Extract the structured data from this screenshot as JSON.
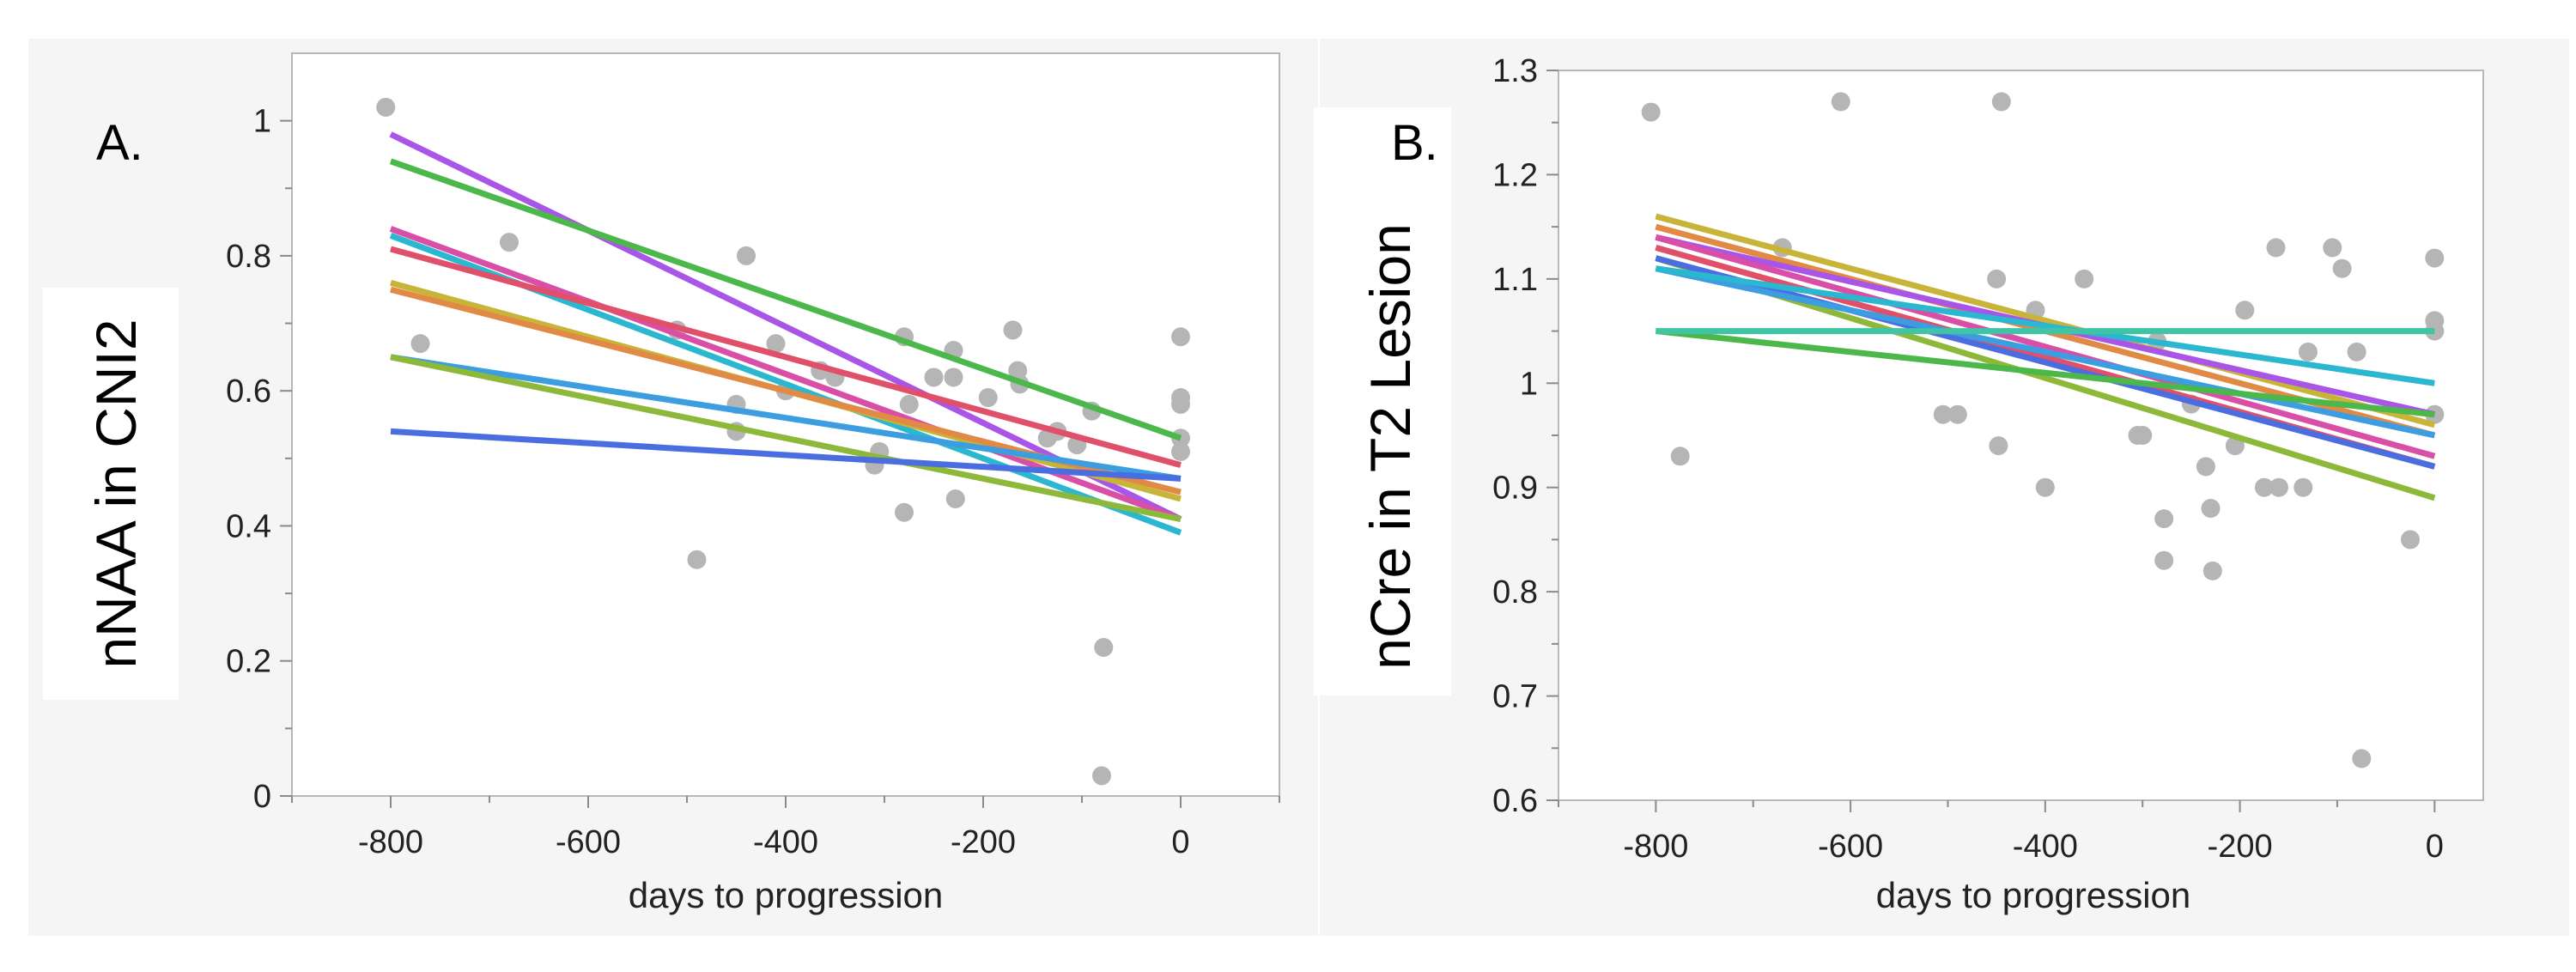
{
  "chart_data": [
    {
      "panel_label": "A.",
      "type": "scatter",
      "xlabel": "days to progression",
      "ylabel": "nNAA in CNI2",
      "xlim": [
        -900,
        100
      ],
      "ylim": [
        0,
        1.1
      ],
      "xticks": [
        -800,
        -600,
        -400,
        -200,
        0
      ],
      "yticks": [
        0,
        0.2,
        0.4,
        0.6,
        0.8,
        1
      ],
      "xtick_labels": [
        "-800",
        "-600",
        "-400",
        "-200",
        "0"
      ],
      "ytick_labels": [
        "0",
        "0.2",
        "0.4",
        "0.6",
        "0.8",
        "1"
      ],
      "grid": false,
      "points": [
        [
          -805,
          1.02
        ],
        [
          -770,
          0.67
        ],
        [
          -680,
          0.82
        ],
        [
          -510,
          0.69
        ],
        [
          -490,
          0.35
        ],
        [
          -450,
          0.58
        ],
        [
          -450,
          0.54
        ],
        [
          -440,
          0.8
        ],
        [
          -410,
          0.67
        ],
        [
          -400,
          0.6
        ],
        [
          -365,
          0.63
        ],
        [
          -350,
          0.62
        ],
        [
          -310,
          0.49
        ],
        [
          -305,
          0.51
        ],
        [
          -280,
          0.68
        ],
        [
          -280,
          0.42
        ],
        [
          -275,
          0.58
        ],
        [
          -250,
          0.62
        ],
        [
          -230,
          0.66
        ],
        [
          -230,
          0.62
        ],
        [
          -228,
          0.44
        ],
        [
          -195,
          0.59
        ],
        [
          -170,
          0.69
        ],
        [
          -165,
          0.63
        ],
        [
          -163,
          0.61
        ],
        [
          -135,
          0.53
        ],
        [
          -125,
          0.54
        ],
        [
          -105,
          0.52
        ],
        [
          -90,
          0.57
        ],
        [
          -78,
          0.22
        ],
        [
          -80,
          0.03
        ],
        [
          0,
          0.68
        ],
        [
          0,
          0.59
        ],
        [
          0,
          0.58
        ],
        [
          0,
          0.53
        ],
        [
          0,
          0.51
        ]
      ],
      "fit_lines": [
        {
          "color": "#a855e8",
          "x": [
            -800,
            0
          ],
          "y": [
            0.98,
            0.41
          ]
        },
        {
          "color": "#4cb84c",
          "x": [
            -800,
            0
          ],
          "y": [
            0.94,
            0.53
          ]
        },
        {
          "color": "#d94fa8",
          "x": [
            -800,
            0
          ],
          "y": [
            0.84,
            0.41
          ]
        },
        {
          "color": "#2ab7cf",
          "x": [
            -800,
            0
          ],
          "y": [
            0.83,
            0.39
          ]
        },
        {
          "color": "#e0506a",
          "x": [
            -800,
            0
          ],
          "y": [
            0.81,
            0.49
          ]
        },
        {
          "color": "#c9b43a",
          "x": [
            -800,
            0
          ],
          "y": [
            0.76,
            0.44
          ]
        },
        {
          "color": "#e08a45",
          "x": [
            -800,
            0
          ],
          "y": [
            0.75,
            0.45
          ]
        },
        {
          "color": "#3c9de0",
          "x": [
            -800,
            0
          ],
          "y": [
            0.65,
            0.47
          ]
        },
        {
          "color": "#8db83a",
          "x": [
            -800,
            0
          ],
          "y": [
            0.65,
            0.41
          ]
        },
        {
          "color": "#4a6ee0",
          "x": [
            -800,
            0
          ],
          "y": [
            0.54,
            0.47
          ]
        }
      ]
    },
    {
      "panel_label": "B.",
      "type": "scatter",
      "xlabel": "days to progression",
      "ylabel": "nCre in T2 Lesion",
      "xlim": [
        -900,
        50
      ],
      "ylim": [
        0.6,
        1.3
      ],
      "xticks": [
        -800,
        -600,
        -400,
        -200,
        0
      ],
      "yticks": [
        0.6,
        0.7,
        0.8,
        0.9,
        1,
        1.1,
        1.2,
        1.3
      ],
      "xtick_labels": [
        "-800",
        "-600",
        "-400",
        "-200",
        "0"
      ],
      "ytick_labels": [
        "0.6",
        "0.7",
        "0.8",
        "0.9",
        "1",
        "1.1",
        "1.2",
        "1.3"
      ],
      "grid": false,
      "points": [
        [
          -805,
          1.26
        ],
        [
          -775,
          0.93
        ],
        [
          -670,
          1.13
        ],
        [
          -610,
          1.27
        ],
        [
          -505,
          0.97
        ],
        [
          -490,
          0.97
        ],
        [
          -450,
          1.1
        ],
        [
          -448,
          0.94
        ],
        [
          -445,
          1.27
        ],
        [
          -410,
          1.07
        ],
        [
          -400,
          0.9
        ],
        [
          -360,
          1.1
        ],
        [
          -305,
          0.95
        ],
        [
          -300,
          0.95
        ],
        [
          -285,
          1.04
        ],
        [
          -278,
          0.87
        ],
        [
          -278,
          0.83
        ],
        [
          -250,
          0.98
        ],
        [
          -235,
          0.92
        ],
        [
          -230,
          0.88
        ],
        [
          -228,
          0.82
        ],
        [
          -205,
          0.94
        ],
        [
          -195,
          1.07
        ],
        [
          -175,
          0.9
        ],
        [
          -163,
          1.13
        ],
        [
          -160,
          0.9
        ],
        [
          -135,
          0.9
        ],
        [
          -130,
          1.03
        ],
        [
          -105,
          1.13
        ],
        [
          -95,
          1.11
        ],
        [
          -80,
          1.03
        ],
        [
          -75,
          0.64
        ],
        [
          -25,
          0.85
        ],
        [
          0,
          1.12
        ],
        [
          0,
          1.06
        ],
        [
          0,
          1.05
        ],
        [
          0,
          0.97
        ]
      ],
      "fit_lines": [
        {
          "color": "#c9b43a",
          "x": [
            -800,
            0
          ],
          "y": [
            1.16,
            0.96
          ]
        },
        {
          "color": "#e08a45",
          "x": [
            -800,
            0
          ],
          "y": [
            1.15,
            0.95
          ]
        },
        {
          "color": "#a855e8",
          "x": [
            -800,
            0
          ],
          "y": [
            1.14,
            0.97
          ]
        },
        {
          "color": "#d94fa8",
          "x": [
            -800,
            0
          ],
          "y": [
            1.14,
            0.93
          ]
        },
        {
          "color": "#e0506a",
          "x": [
            -800,
            0
          ],
          "y": [
            1.13,
            0.92
          ]
        },
        {
          "color": "#8db83a",
          "x": [
            -800,
            0
          ],
          "y": [
            1.12,
            0.89
          ]
        },
        {
          "color": "#4a6ee0",
          "x": [
            -800,
            0
          ],
          "y": [
            1.12,
            0.92
          ]
        },
        {
          "color": "#3c9de0",
          "x": [
            -800,
            0
          ],
          "y": [
            1.11,
            0.95
          ]
        },
        {
          "color": "#2ab7cf",
          "x": [
            -800,
            0
          ],
          "y": [
            1.11,
            1.0
          ]
        },
        {
          "color": "#4cb84c",
          "x": [
            -800,
            0
          ],
          "y": [
            1.05,
            0.97
          ]
        },
        {
          "color": "#3fc4a6",
          "x": [
            -800,
            0
          ],
          "y": [
            1.05,
            1.05
          ]
        }
      ]
    }
  ]
}
